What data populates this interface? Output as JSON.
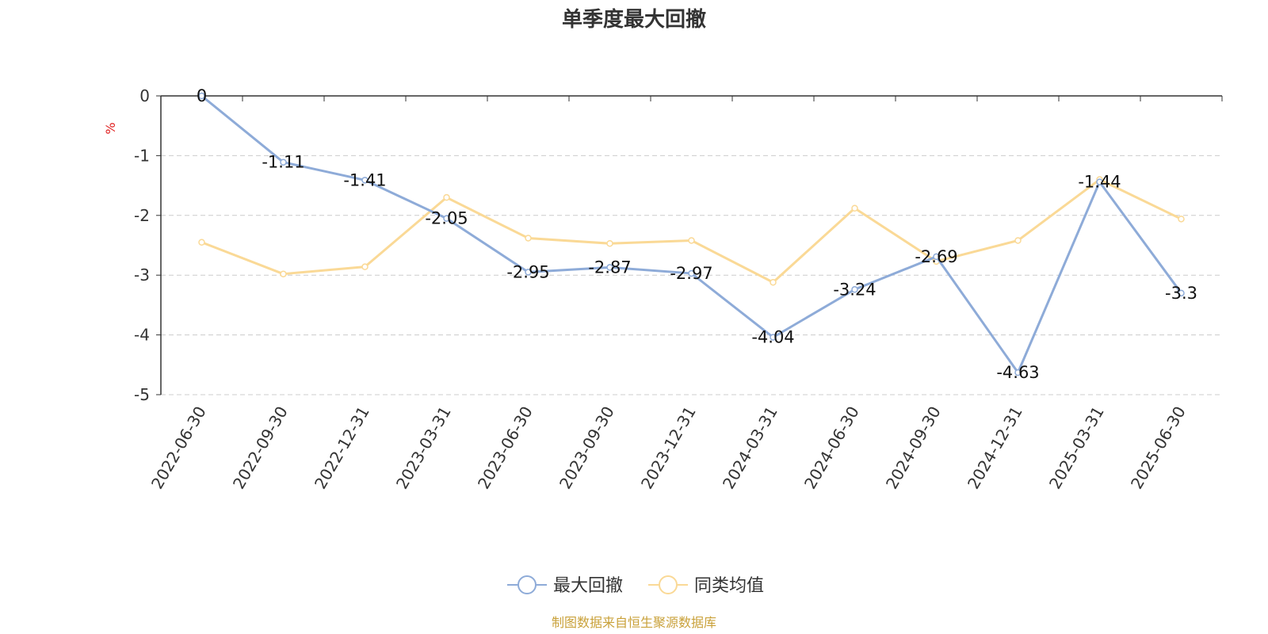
{
  "chart_data": {
    "type": "line",
    "title": "单季度最大回撤",
    "ylabel": "%",
    "xlabel": "",
    "ylim": [
      -5,
      0
    ],
    "yticks": [
      0,
      -1,
      -2,
      -3,
      -4,
      -5
    ],
    "grid": true,
    "legend_position": "bottom-center",
    "categories": [
      "2022-06-30",
      "2022-09-30",
      "2022-12-31",
      "2023-03-31",
      "2023-06-30",
      "2023-09-30",
      "2023-12-31",
      "2024-03-31",
      "2024-06-30",
      "2024-09-30",
      "2024-12-31",
      "2025-03-31",
      "2025-06-30"
    ],
    "series": [
      {
        "name": "最大回撤",
        "color": "#8eabd8",
        "values": [
          0,
          -1.11,
          -1.41,
          -2.05,
          -2.95,
          -2.87,
          -2.97,
          -4.04,
          -3.24,
          -2.69,
          -4.63,
          -1.44,
          -3.3
        ],
        "data_labels": [
          "0",
          "-1.11",
          "-1.41",
          "-2.05",
          "-2.95",
          "-2.87",
          "-2.97",
          "-4.04",
          "-3.24",
          "-2.69",
          "-4.63",
          "-1.44",
          "-3.3"
        ]
      },
      {
        "name": "同类均值",
        "color": "#fad996",
        "values": [
          -2.45,
          -2.98,
          -2.86,
          -1.7,
          -2.38,
          -2.47,
          -2.42,
          -3.12,
          -1.88,
          -2.77,
          -2.42,
          -1.4,
          -2.06
        ]
      }
    ]
  },
  "footer": {
    "source": "制图数据来自恒生聚源数据库"
  },
  "colors": {
    "unit_label": "#e02020",
    "axis": "#333333",
    "grid": "#cccccc",
    "source_text": "#c9a13a"
  }
}
